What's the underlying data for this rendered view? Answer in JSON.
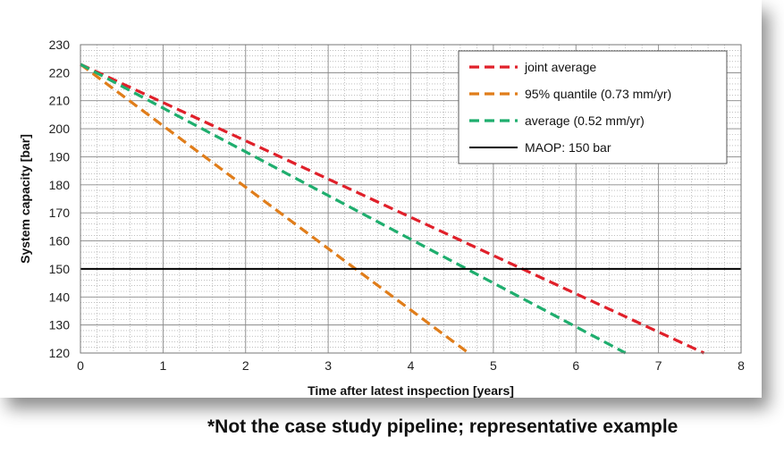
{
  "chart_data": {
    "type": "line",
    "xlabel": "Time after latest inspection [years]",
    "ylabel": "System capacity [bar]",
    "xlim": [
      0,
      8
    ],
    "ylim": [
      120,
      230
    ],
    "xticks": [
      0,
      1,
      2,
      3,
      4,
      5,
      6,
      7,
      8
    ],
    "yticks": [
      120,
      130,
      140,
      150,
      160,
      170,
      180,
      190,
      200,
      210,
      220,
      230
    ],
    "grid": true,
    "legend_position": "top-right",
    "series": [
      {
        "name": "joint average",
        "color": "#e0202a",
        "style": "dashed",
        "x": [
          0,
          7.55
        ],
        "y": [
          223,
          120
        ]
      },
      {
        "name": "95% quantile (0.73 mm/yr)",
        "color": "#e07d1a",
        "style": "dashed",
        "x": [
          0,
          4.7
        ],
        "y": [
          223,
          120
        ]
      },
      {
        "name": "average (0.52 mm/yr)",
        "color": "#1fae6e",
        "style": "dashed",
        "x": [
          0,
          6.6
        ],
        "y": [
          223,
          120
        ]
      },
      {
        "name": "MAOP: 150 bar",
        "color": "#000000",
        "style": "solid",
        "x": [
          0,
          8
        ],
        "y": [
          150,
          150
        ]
      }
    ]
  },
  "footnote": "*Not the case study pipeline; representative example"
}
